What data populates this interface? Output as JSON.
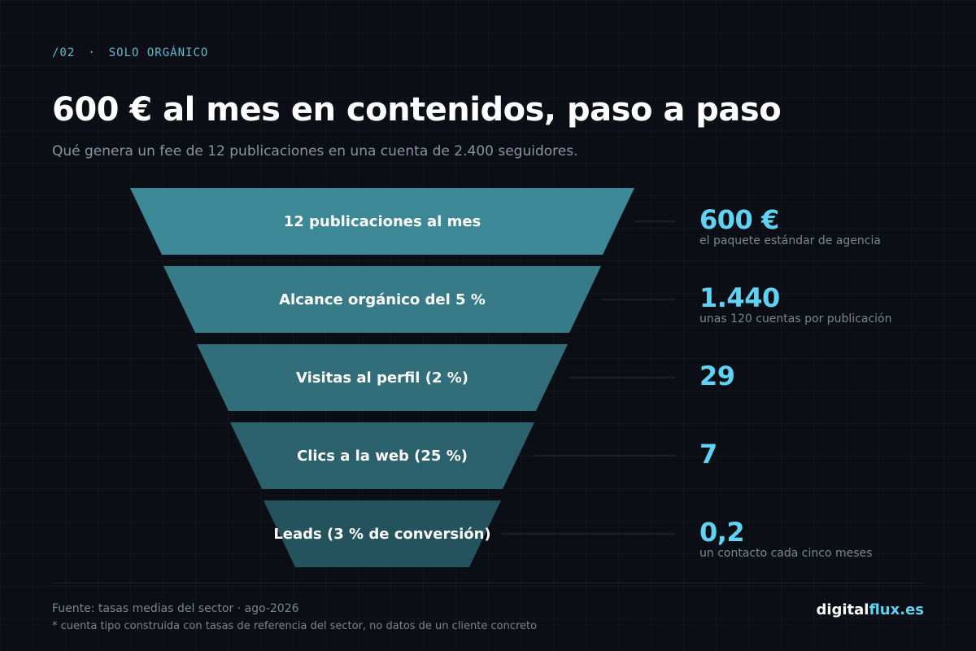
{
  "eyebrow": {
    "number": "/02",
    "separator": "·",
    "label": "SOLO ORGÁNICO"
  },
  "title": "600 € al mes en contenidos, paso a paso",
  "subtitle": "Qué genera un fee de 12 publicaciones en una cuenta de 2.400 seguidores.",
  "stages": [
    {
      "label": "12 publicaciones al mes",
      "value": "600 €",
      "note": "el paquete estándar de agencia",
      "color": "#3d8896"
    },
    {
      "label": "Alcance orgánico del 5 %",
      "value": "1.440",
      "note": "unas 120 cuentas por publicación",
      "color": "#377b88"
    },
    {
      "label": "Visitas al perfil (2 %)",
      "value": "29",
      "note": "",
      "color": "#316e7a"
    },
    {
      "label": "Clics a la web (25 %)",
      "value": "7",
      "note": "",
      "color": "#2b616c"
    },
    {
      "label": "Leads (3 % de conversión)",
      "value": "0,2",
      "note": "un contacto cada cinco meses",
      "color": "#25535d"
    }
  ],
  "colors": {
    "accent": "#5ed3f3",
    "eyebrow": "#5fb9d3",
    "background": "#0b0e14"
  },
  "footer": {
    "source": "Fuente: tasas medias del sector · ago-2026",
    "disclaimer": "* cuenta tipo construida con tasas de referencia del sector, no datos de un cliente concreto",
    "brand_a": "digital",
    "brand_b": "flux.es"
  }
}
